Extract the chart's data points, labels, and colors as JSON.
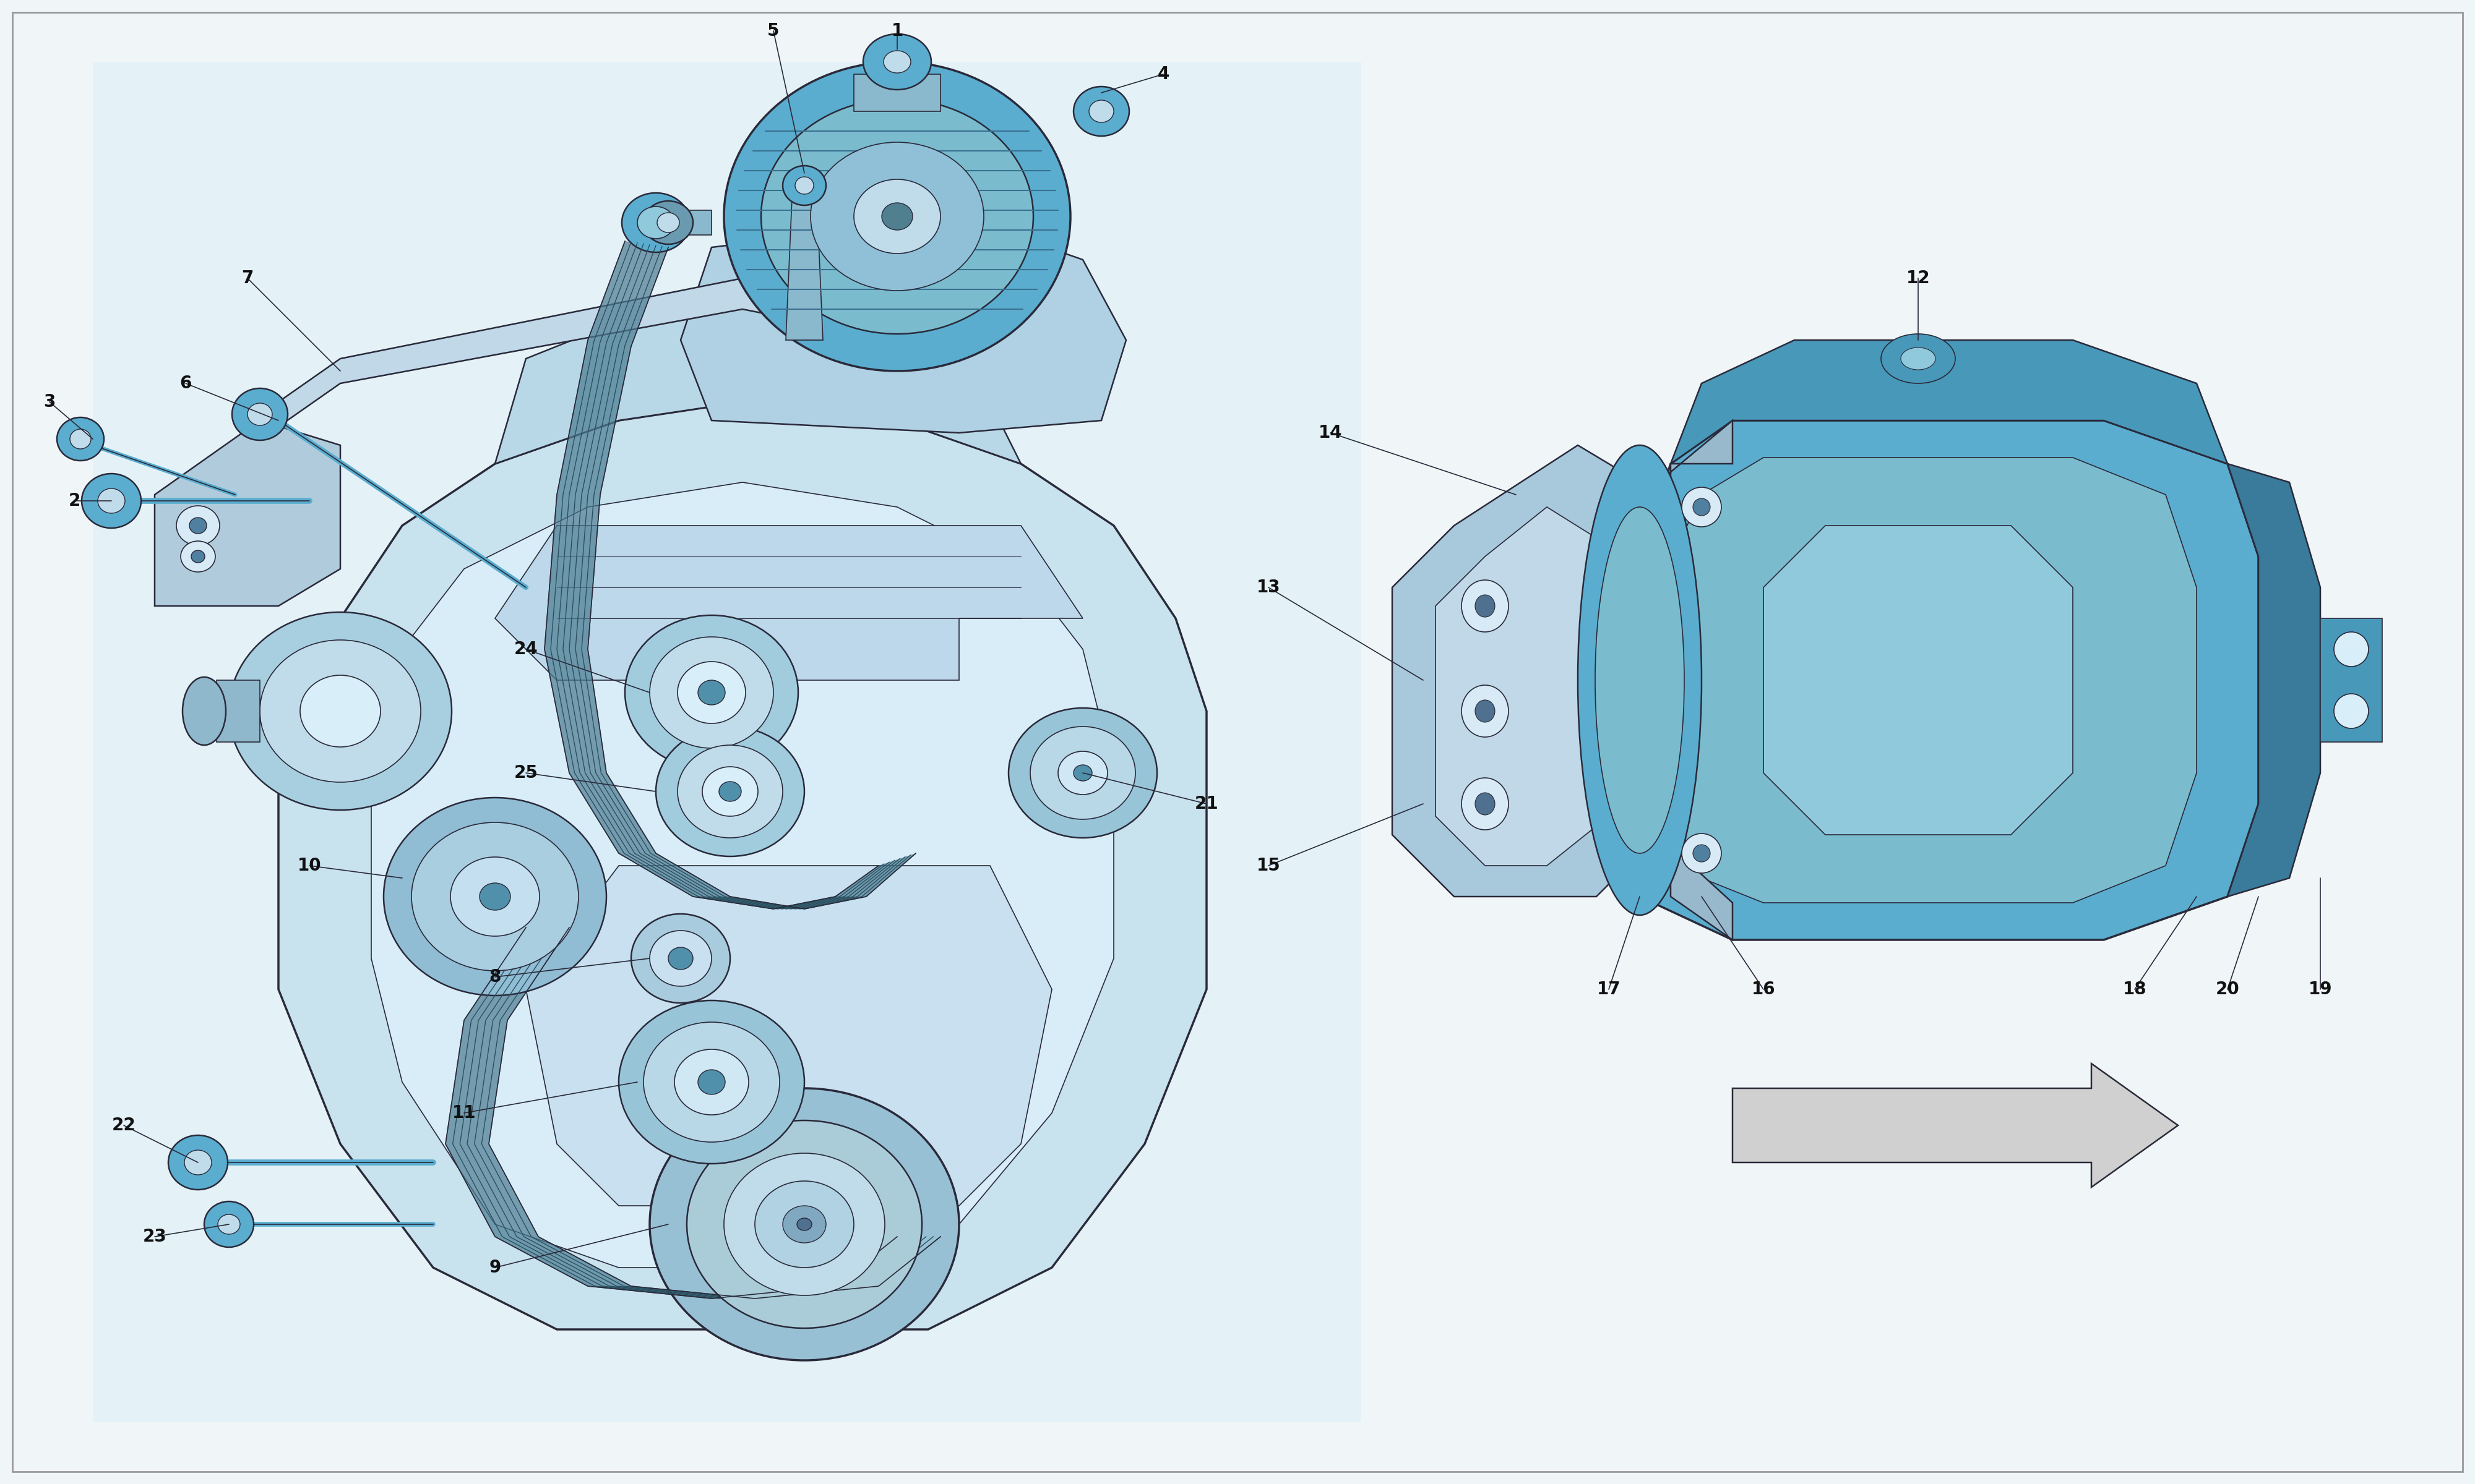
{
  "bg_color": "#f0f5f8",
  "white": "#ffffff",
  "line_color": "#2a2a3a",
  "blue_light": "#b8d8e8",
  "blue_mid": "#7ab8d4",
  "blue_dark": "#4a8aaa",
  "blue_fill": "#5aadcf",
  "blue_pale": "#d4eaf5",
  "blue_deep": "#3a7a9a",
  "gray_line": "#888888",
  "fig_width": 40,
  "fig_height": 24,
  "bg_panel_left": "#e8f4f8",
  "label_fontsize": 22,
  "label_color": "#111111"
}
